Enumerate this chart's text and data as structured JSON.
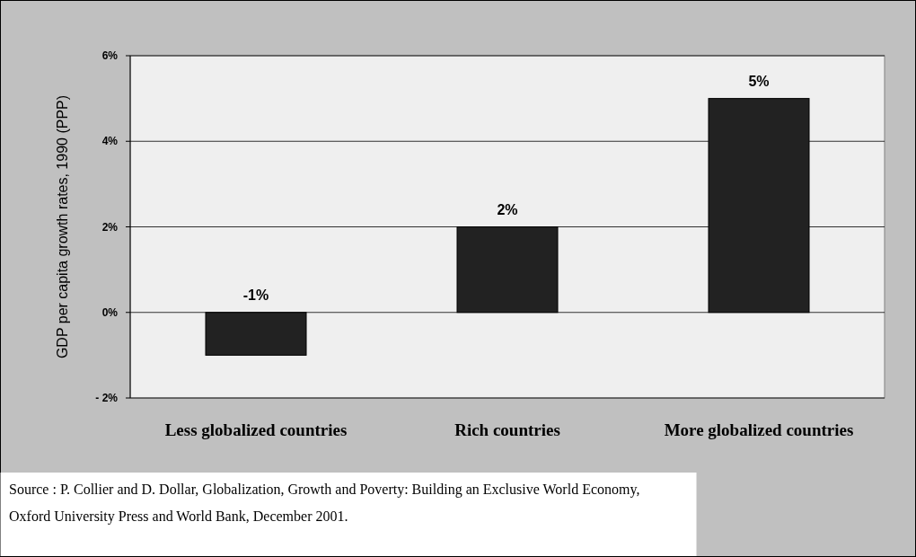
{
  "chart_data": {
    "type": "bar",
    "ylabel": "GDP per capita growth rates, 1990 (PPP)",
    "categories": [
      "Less globalized countries",
      "Rich countries",
      "More globalized countries"
    ],
    "values": [
      -1,
      2,
      5
    ],
    "color": "#222222",
    "value_labels": [
      "-1%",
      "2%",
      "5%"
    ],
    "ylim": [
      -2,
      6
    ],
    "yticks": [
      {
        "value": -2,
        "label": "- 2%"
      },
      {
        "value": 0,
        "label": "0%"
      },
      {
        "value": 2,
        "label": "2%"
      },
      {
        "value": 4,
        "label": "4%"
      },
      {
        "value": 6,
        "label": "6%"
      }
    ],
    "grid": "y",
    "annotations": [
      "Source : P. Collier and D. Dollar, Globalization, Growth and Poverty: Building an Exclusive World Economy, Oxford University Press and World Bank, December 2001."
    ]
  }
}
